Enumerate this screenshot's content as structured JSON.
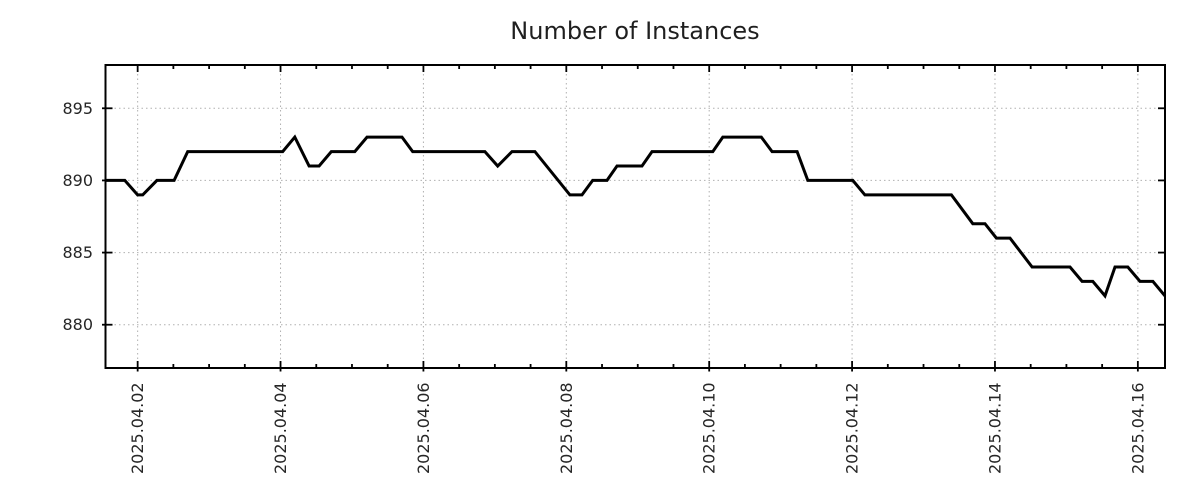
{
  "page": {
    "background": "#ffffff"
  },
  "chart_data": {
    "type": "line",
    "title": "Number of Instances",
    "xlabel": "",
    "ylabel": "",
    "legend": "none",
    "x_axis": {
      "min": 1.55,
      "max": 16.38,
      "unit_note": "day of April 2025 (decimal day-of-month)",
      "major_ticks": [
        2,
        4,
        6,
        8,
        10,
        12,
        14,
        16
      ],
      "major_tick_labels": [
        "2025.04.02",
        "2025.04.04",
        "2025.04.06",
        "2025.04.08",
        "2025.04.10",
        "2025.04.12",
        "2025.04.14",
        "2025.04.16"
      ],
      "minor_tick_interval": 0.5,
      "grid": "dotted-at-major-ticks",
      "tick_label_rotation_deg": 90
    },
    "y_axis": {
      "min": 877,
      "max": 898,
      "ticks": [
        880,
        885,
        890,
        895
      ],
      "tick_labels": [
        "880",
        "885",
        "890",
        "895"
      ],
      "grid": "dotted-at-major-ticks"
    },
    "colors": {
      "line": "#000000",
      "grid": "#b0b0b0",
      "axis": "#000000",
      "text": "#262626"
    },
    "series": [
      {
        "name": "instances",
        "color": "#000000",
        "points": [
          [
            1.55,
            890
          ],
          [
            1.82,
            890
          ],
          [
            2.0,
            889
          ],
          [
            2.07,
            889
          ],
          [
            2.27,
            890
          ],
          [
            2.51,
            890
          ],
          [
            2.7,
            892
          ],
          [
            4.03,
            892
          ],
          [
            4.2,
            893
          ],
          [
            4.4,
            891
          ],
          [
            4.54,
            891
          ],
          [
            4.71,
            892
          ],
          [
            5.04,
            892
          ],
          [
            5.21,
            893
          ],
          [
            5.7,
            893
          ],
          [
            5.85,
            892
          ],
          [
            6.86,
            892
          ],
          [
            7.04,
            891
          ],
          [
            7.24,
            892
          ],
          [
            7.56,
            892
          ],
          [
            8.05,
            889
          ],
          [
            8.22,
            889
          ],
          [
            8.37,
            890
          ],
          [
            8.57,
            890
          ],
          [
            8.71,
            891
          ],
          [
            9.06,
            891
          ],
          [
            9.2,
            892
          ],
          [
            10.05,
            892
          ],
          [
            10.19,
            893
          ],
          [
            10.73,
            893
          ],
          [
            10.88,
            892
          ],
          [
            11.23,
            892
          ],
          [
            11.38,
            890
          ],
          [
            12.01,
            890
          ],
          [
            12.18,
            889
          ],
          [
            13.39,
            889
          ],
          [
            13.69,
            887
          ],
          [
            13.86,
            887
          ],
          [
            14.02,
            886
          ],
          [
            14.21,
            886
          ],
          [
            14.52,
            884
          ],
          [
            15.05,
            884
          ],
          [
            15.22,
            883
          ],
          [
            15.37,
            883
          ],
          [
            15.54,
            882
          ],
          [
            15.68,
            884
          ],
          [
            15.86,
            884
          ],
          [
            16.03,
            883
          ],
          [
            16.21,
            883
          ],
          [
            16.38,
            882
          ]
        ]
      }
    ]
  }
}
